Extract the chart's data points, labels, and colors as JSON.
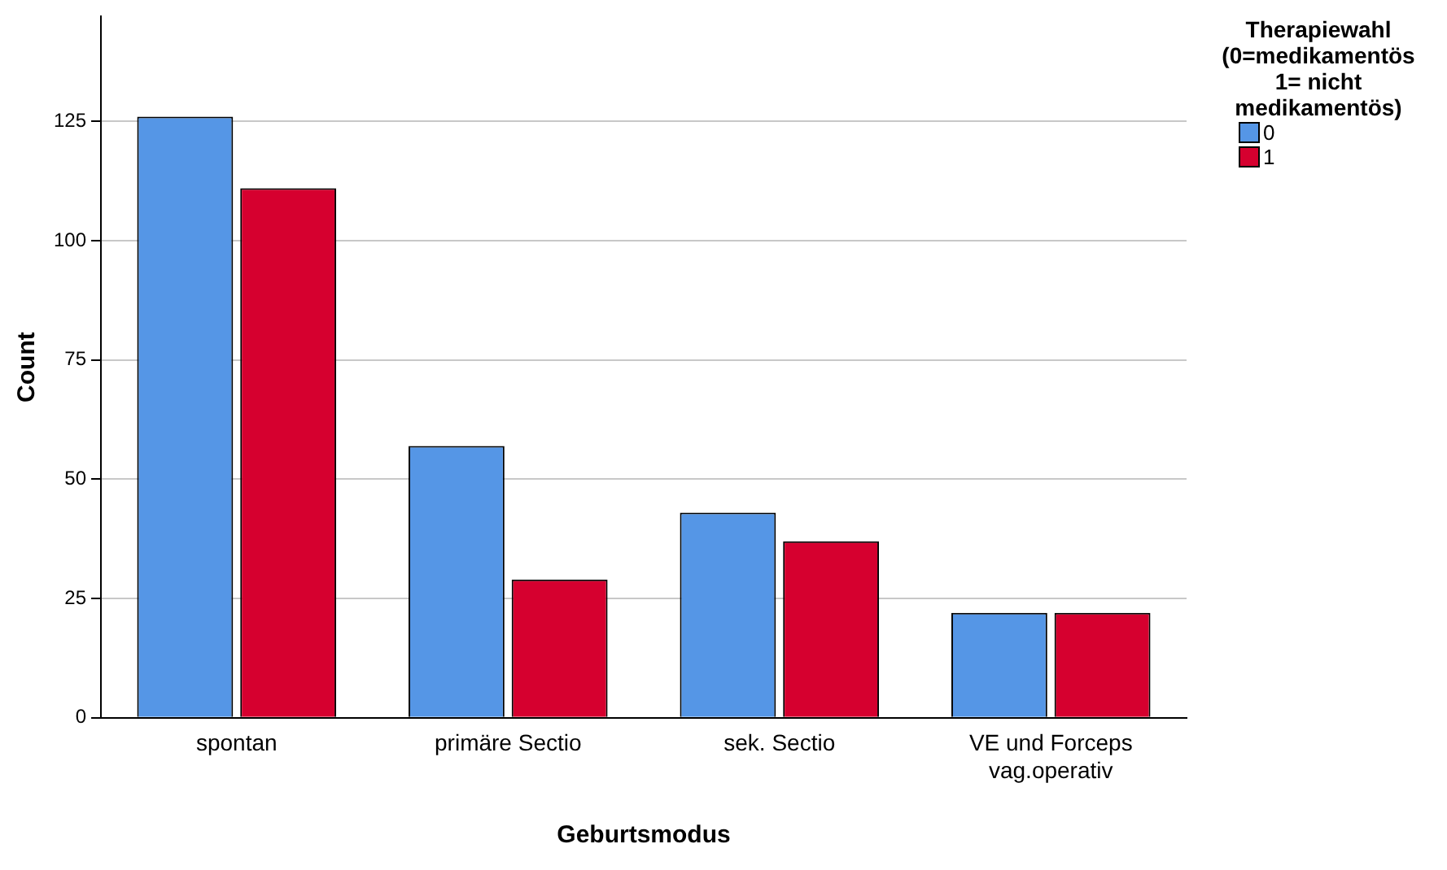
{
  "chart_data": {
    "type": "bar",
    "xlabel": "Geburtsmodus",
    "ylabel": "Count",
    "legend_title": "Therapiewahl (0=medikamentös 1= nicht medikamentös)",
    "categories": [
      "spontan",
      "primäre Sectio",
      "sek. Sectio",
      "VE und Forceps vag.operativ"
    ],
    "series": [
      {
        "name": "0",
        "color": "#5596e6",
        "values": [
          126,
          57,
          43,
          22
        ]
      },
      {
        "name": "1",
        "color": "#d6002f",
        "values": [
          111,
          29,
          37,
          22
        ]
      }
    ],
    "ylim": [
      0,
      147
    ],
    "yticks": [
      0,
      25,
      50,
      75,
      100,
      125
    ],
    "grid": "y",
    "legend": "top right"
  }
}
